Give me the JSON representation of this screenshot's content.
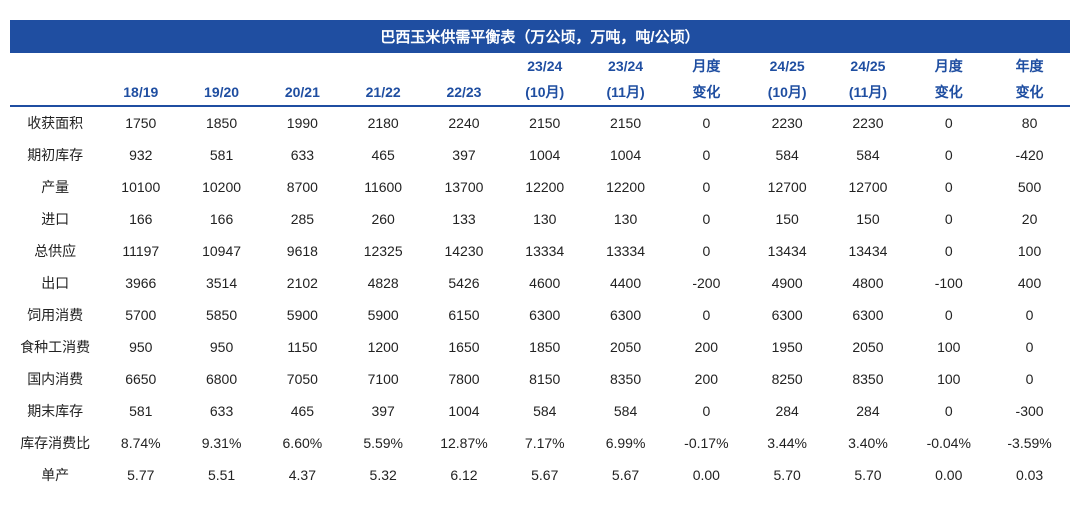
{
  "title": "巴西玉米供需平衡表（万公顷，万吨，吨/公顷）",
  "colors": {
    "header_bg": "#1f4ea1",
    "header_fg": "#ffffff",
    "label_fg": "#1f4ea1",
    "body_fg": "#222222",
    "pos": "#d1261f",
    "neg": "#2e8b3d",
    "background": "#ffffff",
    "border": "#1f4ea1"
  },
  "fontsize": {
    "title": 15,
    "header": 14,
    "body": 14
  },
  "header_top": [
    "",
    "",
    "",
    "",
    "",
    "",
    "23/24",
    "23/24",
    "月度",
    "24/25",
    "24/25",
    "月度",
    "年度"
  ],
  "header_bottom": [
    "",
    "18/19",
    "19/20",
    "20/21",
    "21/22",
    "22/23",
    "(10月)",
    "(11月)",
    "变化",
    "(10月)",
    "(11月)",
    "变化",
    "变化"
  ],
  "rows": [
    {
      "label": "收获面积",
      "cells": [
        "1750",
        "1850",
        "1990",
        "2180",
        "2240",
        "2150",
        "2150",
        {
          "v": "0"
        },
        "2230",
        "2230",
        {
          "v": "0"
        },
        {
          "v": "80",
          "c": "pos"
        }
      ]
    },
    {
      "label": "期初库存",
      "cells": [
        "932",
        "581",
        "633",
        "465",
        "397",
        "1004",
        "1004",
        {
          "v": "0"
        },
        "584",
        "584",
        {
          "v": "0"
        },
        {
          "v": "-420",
          "c": "neg"
        }
      ]
    },
    {
      "label": "产量",
      "cells": [
        "10100",
        "10200",
        "8700",
        "11600",
        "13700",
        "12200",
        "12200",
        {
          "v": "0"
        },
        "12700",
        "12700",
        {
          "v": "0"
        },
        {
          "v": "500",
          "c": "pos"
        }
      ]
    },
    {
      "label": "进口",
      "cells": [
        "166",
        "166",
        "285",
        "260",
        "133",
        "130",
        "130",
        {
          "v": "0"
        },
        "150",
        "150",
        {
          "v": "0"
        },
        {
          "v": "20",
          "c": "pos"
        }
      ]
    },
    {
      "label": "总供应",
      "cells": [
        "11197",
        "10947",
        "9618",
        "12325",
        "14230",
        "13334",
        "13334",
        {
          "v": "0"
        },
        "13434",
        "13434",
        {
          "v": "0"
        },
        {
          "v": "100",
          "c": "pos"
        }
      ]
    },
    {
      "label": "出口",
      "cells": [
        "3966",
        "3514",
        "2102",
        "4828",
        "5426",
        "4600",
        "4400",
        {
          "v": "-200",
          "c": "neg"
        },
        "4900",
        "4800",
        {
          "v": "-100",
          "c": "neg"
        },
        {
          "v": "400",
          "c": "pos"
        }
      ]
    },
    {
      "label": "饲用消费",
      "cells": [
        "5700",
        "5850",
        "5900",
        "5900",
        "6150",
        "6300",
        "6300",
        {
          "v": "0"
        },
        "6300",
        "6300",
        {
          "v": "0"
        },
        {
          "v": "0"
        }
      ]
    },
    {
      "label": "食种工消费",
      "cells": [
        "950",
        "950",
        "1150",
        "1200",
        "1650",
        "1850",
        "2050",
        {
          "v": "200",
          "c": "pos"
        },
        "1950",
        "2050",
        {
          "v": "100",
          "c": "pos"
        },
        {
          "v": "0"
        }
      ]
    },
    {
      "label": "国内消费",
      "cells": [
        "6650",
        "6800",
        "7050",
        "7100",
        "7800",
        "8150",
        "8350",
        {
          "v": "200",
          "c": "pos"
        },
        "8250",
        "8350",
        {
          "v": "100",
          "c": "pos"
        },
        {
          "v": "0"
        }
      ]
    },
    {
      "label": "期末库存",
      "cells": [
        "581",
        "633",
        "465",
        "397",
        "1004",
        "584",
        "584",
        {
          "v": "0"
        },
        "284",
        "284",
        {
          "v": "0"
        },
        {
          "v": "-300",
          "c": "neg"
        }
      ]
    },
    {
      "label": "库存消费比",
      "cells": [
        "8.74%",
        "9.31%",
        "6.60%",
        "5.59%",
        "12.87%",
        "7.17%",
        "6.99%",
        {
          "v": "-0.17%",
          "c": "neg"
        },
        "3.44%",
        "3.40%",
        {
          "v": "-0.04%",
          "c": "neg"
        },
        {
          "v": "-3.59%",
          "c": "neg"
        }
      ]
    },
    {
      "label": "单产",
      "cells": [
        "5.77",
        "5.51",
        "4.37",
        "5.32",
        "6.12",
        "5.67",
        "5.67",
        {
          "v": "0.00"
        },
        "5.70",
        "5.70",
        {
          "v": "0.00"
        },
        {
          "v": "0.03",
          "c": "pos"
        }
      ]
    }
  ]
}
